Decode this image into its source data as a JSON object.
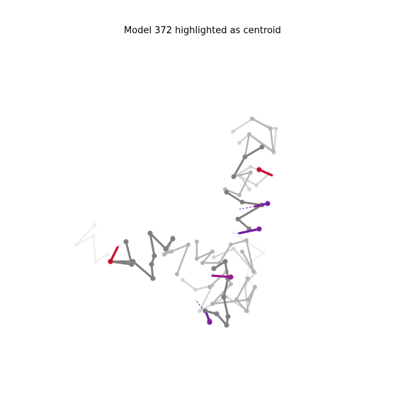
{
  "figure": {
    "title": "Model 372 highlighted as centroid"
  },
  "colors": {
    "background": "#ffffff",
    "trace_faint": "#ededed",
    "trace_light": "#d2d2d2",
    "trace_mid": "#b4b4b4",
    "trace_dark": "#7f7f7f",
    "highlight_red": "#c8102e",
    "highlight_purple": "#7a1fa2",
    "highlight_magenta": "#9b1b8a"
  }
}
